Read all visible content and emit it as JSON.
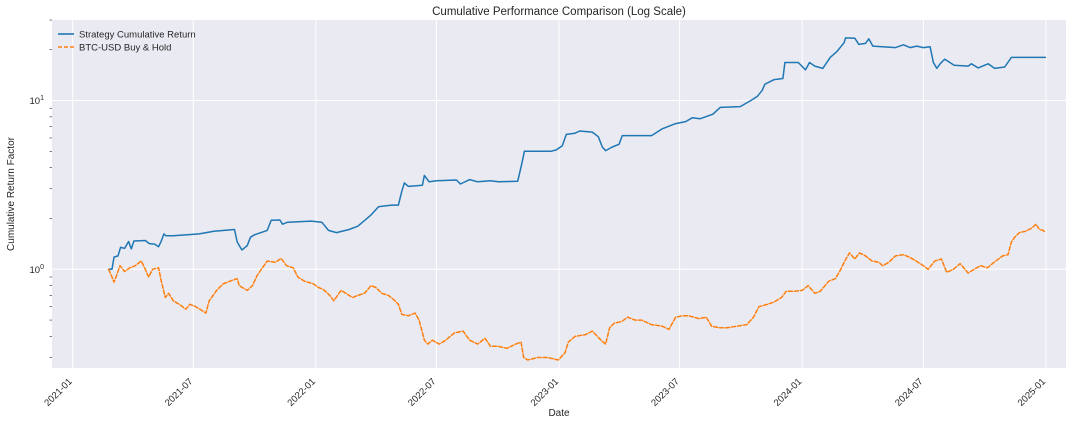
{
  "chart_data": {
    "type": "line",
    "title": "Cumulative Performance Comparison (Log Scale)",
    "xlabel": "Date",
    "ylabel": "Cumulative Return Factor",
    "yscale": "log",
    "ylim": [
      0.26,
      30
    ],
    "xlim": [
      "2020-12-01",
      "2025-01-31"
    ],
    "grid": true,
    "legend_position": "upper-left",
    "x_ticks": [
      "2021-01",
      "2021-07",
      "2022-01",
      "2022-07",
      "2023-01",
      "2023-07",
      "2024-01",
      "2024-07",
      "2025-01"
    ],
    "y_ticks": [
      {
        "value": 1,
        "base": "10",
        "exp": "0"
      },
      {
        "value": 10,
        "base": "10",
        "exp": "1"
      }
    ],
    "series": [
      {
        "name": "Strategy Cumulative Return",
        "color": "#1f77b4",
        "style": "solid",
        "points": [
          [
            "2021-02-24",
            1.0
          ],
          [
            "2021-03-01",
            1.0
          ],
          [
            "2021-03-04",
            1.18
          ],
          [
            "2021-03-10",
            1.2
          ],
          [
            "2021-03-14",
            1.35
          ],
          [
            "2021-03-20",
            1.33
          ],
          [
            "2021-03-26",
            1.46
          ],
          [
            "2021-03-30",
            1.32
          ],
          [
            "2021-04-03",
            1.47
          ],
          [
            "2021-04-20",
            1.48
          ],
          [
            "2021-04-26",
            1.42
          ],
          [
            "2021-05-04",
            1.41
          ],
          [
            "2021-05-10",
            1.36
          ],
          [
            "2021-05-14",
            1.47
          ],
          [
            "2021-05-18",
            1.62
          ],
          [
            "2021-05-21",
            1.58
          ],
          [
            "2021-06-01",
            1.58
          ],
          [
            "2021-07-10",
            1.62
          ],
          [
            "2021-08-01",
            1.68
          ],
          [
            "2021-09-01",
            1.72
          ],
          [
            "2021-09-05",
            1.45
          ],
          [
            "2021-09-12",
            1.3
          ],
          [
            "2021-09-20",
            1.38
          ],
          [
            "2021-09-25",
            1.55
          ],
          [
            "2021-10-01",
            1.6
          ],
          [
            "2021-10-20",
            1.7
          ],
          [
            "2021-10-26",
            1.95
          ],
          [
            "2021-11-08",
            1.96
          ],
          [
            "2021-11-12",
            1.85
          ],
          [
            "2021-11-20",
            1.9
          ],
          [
            "2021-12-25",
            1.93
          ],
          [
            "2022-01-10",
            1.9
          ],
          [
            "2022-01-20",
            1.7
          ],
          [
            "2022-02-01",
            1.65
          ],
          [
            "2022-02-20",
            1.72
          ],
          [
            "2022-03-05",
            1.8
          ],
          [
            "2022-03-25",
            2.1
          ],
          [
            "2022-04-05",
            2.35
          ],
          [
            "2022-04-25",
            2.4
          ],
          [
            "2022-05-05",
            2.4
          ],
          [
            "2022-05-10",
            2.9
          ],
          [
            "2022-05-14",
            3.25
          ],
          [
            "2022-05-20",
            3.1
          ],
          [
            "2022-06-10",
            3.15
          ],
          [
            "2022-06-13",
            3.6
          ],
          [
            "2022-06-20",
            3.3
          ],
          [
            "2022-07-01",
            3.35
          ],
          [
            "2022-07-31",
            3.38
          ],
          [
            "2022-08-06",
            3.2
          ],
          [
            "2022-08-20",
            3.4
          ],
          [
            "2022-09-01",
            3.3
          ],
          [
            "2022-09-20",
            3.35
          ],
          [
            "2022-10-02",
            3.3
          ],
          [
            "2022-10-31",
            3.32
          ],
          [
            "2022-11-06",
            4.2
          ],
          [
            "2022-11-10",
            5.0
          ],
          [
            "2022-12-20",
            5.0
          ],
          [
            "2022-12-28",
            5.1
          ],
          [
            "2023-01-06",
            5.4
          ],
          [
            "2023-01-12",
            6.3
          ],
          [
            "2023-01-25",
            6.4
          ],
          [
            "2023-02-01",
            6.6
          ],
          [
            "2023-02-20",
            6.5
          ],
          [
            "2023-03-01",
            6.1
          ],
          [
            "2023-03-07",
            5.3
          ],
          [
            "2023-03-12",
            5.05
          ],
          [
            "2023-03-22",
            5.3
          ],
          [
            "2023-04-01",
            5.5
          ],
          [
            "2023-04-06",
            6.2
          ],
          [
            "2023-05-20",
            6.2
          ],
          [
            "2023-06-05",
            6.8
          ],
          [
            "2023-06-25",
            7.3
          ],
          [
            "2023-07-10",
            7.5
          ],
          [
            "2023-07-20",
            7.9
          ],
          [
            "2023-08-01",
            7.8
          ],
          [
            "2023-08-20",
            8.3
          ],
          [
            "2023-08-31",
            9.1
          ],
          [
            "2023-09-30",
            9.2
          ],
          [
            "2023-10-16",
            10.0
          ],
          [
            "2023-10-26",
            10.6
          ],
          [
            "2023-11-02",
            11.5
          ],
          [
            "2023-11-06",
            12.5
          ],
          [
            "2023-11-20",
            13.3
          ],
          [
            "2023-12-03",
            13.5
          ],
          [
            "2023-12-06",
            16.8
          ],
          [
            "2023-12-26",
            16.8
          ],
          [
            "2024-01-06",
            15.2
          ],
          [
            "2024-01-12",
            16.8
          ],
          [
            "2024-01-20",
            16.0
          ],
          [
            "2024-02-01",
            15.5
          ],
          [
            "2024-02-12",
            18.0
          ],
          [
            "2024-02-22",
            19.5
          ],
          [
            "2024-03-04",
            22.0
          ],
          [
            "2024-03-06",
            23.5
          ],
          [
            "2024-03-20",
            23.4
          ],
          [
            "2024-03-26",
            21.5
          ],
          [
            "2024-04-05",
            21.8
          ],
          [
            "2024-04-10",
            23.2
          ],
          [
            "2024-04-16",
            21.0
          ],
          [
            "2024-05-20",
            20.6
          ],
          [
            "2024-06-01",
            21.4
          ],
          [
            "2024-06-11",
            20.6
          ],
          [
            "2024-06-21",
            21.0
          ],
          [
            "2024-07-01",
            20.6
          ],
          [
            "2024-07-11",
            20.8
          ],
          [
            "2024-07-16",
            16.8
          ],
          [
            "2024-07-21",
            15.5
          ],
          [
            "2024-07-26",
            16.5
          ],
          [
            "2024-08-02",
            17.6
          ],
          [
            "2024-08-16",
            16.2
          ],
          [
            "2024-09-06",
            16.0
          ],
          [
            "2024-09-11",
            16.5
          ],
          [
            "2024-09-21",
            15.6
          ],
          [
            "2024-10-06",
            16.5
          ],
          [
            "2024-10-16",
            15.5
          ],
          [
            "2024-10-31",
            15.8
          ],
          [
            "2024-11-10",
            18.0
          ],
          [
            "2024-12-01",
            18.0
          ],
          [
            "2024-12-31",
            18.0
          ]
        ]
      },
      {
        "name": "BTC-USD Buy & Hold",
        "color": "#ff7f0e",
        "style": "dashed",
        "points": [
          [
            "2021-02-24",
            1.0
          ],
          [
            "2021-03-01",
            0.9
          ],
          [
            "2021-03-04",
            0.84
          ],
          [
            "2021-03-08",
            0.92
          ],
          [
            "2021-03-13",
            1.05
          ],
          [
            "2021-03-20",
            0.97
          ],
          [
            "2021-03-28",
            1.02
          ],
          [
            "2021-04-05",
            1.05
          ],
          [
            "2021-04-14",
            1.12
          ],
          [
            "2021-04-20",
            1.0
          ],
          [
            "2021-04-25",
            0.9
          ],
          [
            "2021-05-01",
            1.0
          ],
          [
            "2021-05-10",
            1.02
          ],
          [
            "2021-05-14",
            0.85
          ],
          [
            "2021-05-20",
            0.68
          ],
          [
            "2021-05-25",
            0.72
          ],
          [
            "2021-06-01",
            0.65
          ],
          [
            "2021-06-10",
            0.62
          ],
          [
            "2021-06-20",
            0.58
          ],
          [
            "2021-06-26",
            0.62
          ],
          [
            "2021-07-05",
            0.6
          ],
          [
            "2021-07-20",
            0.55
          ],
          [
            "2021-07-25",
            0.65
          ],
          [
            "2021-08-05",
            0.75
          ],
          [
            "2021-08-15",
            0.82
          ],
          [
            "2021-08-25",
            0.85
          ],
          [
            "2021-09-05",
            0.88
          ],
          [
            "2021-09-08",
            0.8
          ],
          [
            "2021-09-20",
            0.75
          ],
          [
            "2021-09-28",
            0.8
          ],
          [
            "2021-10-05",
            0.92
          ],
          [
            "2021-10-15",
            1.05
          ],
          [
            "2021-10-20",
            1.12
          ],
          [
            "2021-11-01",
            1.1
          ],
          [
            "2021-11-10",
            1.16
          ],
          [
            "2021-11-18",
            1.05
          ],
          [
            "2021-11-28",
            1.02
          ],
          [
            "2021-12-05",
            0.9
          ],
          [
            "2021-12-15",
            0.85
          ],
          [
            "2021-12-28",
            0.82
          ],
          [
            "2022-01-05",
            0.78
          ],
          [
            "2022-01-12",
            0.76
          ],
          [
            "2022-01-22",
            0.7
          ],
          [
            "2022-01-28",
            0.65
          ],
          [
            "2022-02-08",
            0.75
          ],
          [
            "2022-02-15",
            0.72
          ],
          [
            "2022-02-25",
            0.68
          ],
          [
            "2022-03-05",
            0.7
          ],
          [
            "2022-03-15",
            0.72
          ],
          [
            "2022-03-25",
            0.8
          ],
          [
            "2022-04-01",
            0.78
          ],
          [
            "2022-04-10",
            0.72
          ],
          [
            "2022-04-20",
            0.7
          ],
          [
            "2022-04-28",
            0.66
          ],
          [
            "2022-05-05",
            0.62
          ],
          [
            "2022-05-10",
            0.54
          ],
          [
            "2022-05-20",
            0.53
          ],
          [
            "2022-05-30",
            0.55
          ],
          [
            "2022-06-05",
            0.5
          ],
          [
            "2022-06-13",
            0.38
          ],
          [
            "2022-06-18",
            0.36
          ],
          [
            "2022-06-25",
            0.38
          ],
          [
            "2022-07-05",
            0.36
          ],
          [
            "2022-07-15",
            0.38
          ],
          [
            "2022-07-28",
            0.42
          ],
          [
            "2022-08-10",
            0.43
          ],
          [
            "2022-08-20",
            0.38
          ],
          [
            "2022-09-01",
            0.36
          ],
          [
            "2022-09-12",
            0.39
          ],
          [
            "2022-09-20",
            0.35
          ],
          [
            "2022-10-01",
            0.35
          ],
          [
            "2022-10-15",
            0.34
          ],
          [
            "2022-10-28",
            0.36
          ],
          [
            "2022-11-05",
            0.37
          ],
          [
            "2022-11-09",
            0.3
          ],
          [
            "2022-11-15",
            0.29
          ],
          [
            "2022-11-30",
            0.3
          ],
          [
            "2022-12-15",
            0.3
          ],
          [
            "2022-12-31",
            0.29
          ],
          [
            "2023-01-10",
            0.32
          ],
          [
            "2023-01-15",
            0.37
          ],
          [
            "2023-01-25",
            0.4
          ],
          [
            "2023-02-10",
            0.41
          ],
          [
            "2023-02-20",
            0.43
          ],
          [
            "2023-03-05",
            0.38
          ],
          [
            "2023-03-12",
            0.36
          ],
          [
            "2023-03-18",
            0.45
          ],
          [
            "2023-03-25",
            0.48
          ],
          [
            "2023-04-05",
            0.49
          ],
          [
            "2023-04-14",
            0.52
          ],
          [
            "2023-04-25",
            0.5
          ],
          [
            "2023-05-05",
            0.5
          ],
          [
            "2023-05-20",
            0.47
          ],
          [
            "2023-06-05",
            0.46
          ],
          [
            "2023-06-15",
            0.44
          ],
          [
            "2023-06-25",
            0.52
          ],
          [
            "2023-07-05",
            0.53
          ],
          [
            "2023-07-15",
            0.53
          ],
          [
            "2023-07-30",
            0.51
          ],
          [
            "2023-08-10",
            0.52
          ],
          [
            "2023-08-18",
            0.46
          ],
          [
            "2023-08-30",
            0.45
          ],
          [
            "2023-09-10",
            0.45
          ],
          [
            "2023-09-25",
            0.46
          ],
          [
            "2023-10-10",
            0.47
          ],
          [
            "2023-10-20",
            0.52
          ],
          [
            "2023-10-28",
            0.6
          ],
          [
            "2023-11-10",
            0.62
          ],
          [
            "2023-11-20",
            0.64
          ],
          [
            "2023-12-01",
            0.68
          ],
          [
            "2023-12-08",
            0.74
          ],
          [
            "2023-12-20",
            0.74
          ],
          [
            "2024-01-01",
            0.75
          ],
          [
            "2024-01-10",
            0.8
          ],
          [
            "2024-01-20",
            0.72
          ],
          [
            "2024-01-28",
            0.74
          ],
          [
            "2024-02-10",
            0.85
          ],
          [
            "2024-02-20",
            0.88
          ],
          [
            "2024-02-28",
            1.0
          ],
          [
            "2024-03-05",
            1.12
          ],
          [
            "2024-03-12",
            1.25
          ],
          [
            "2024-03-20",
            1.15
          ],
          [
            "2024-03-27",
            1.25
          ],
          [
            "2024-04-05",
            1.2
          ],
          [
            "2024-04-15",
            1.12
          ],
          [
            "2024-04-25",
            1.1
          ],
          [
            "2024-05-01",
            1.05
          ],
          [
            "2024-05-10",
            1.1
          ],
          [
            "2024-05-20",
            1.2
          ],
          [
            "2024-06-01",
            1.22
          ],
          [
            "2024-06-10",
            1.18
          ],
          [
            "2024-06-20",
            1.12
          ],
          [
            "2024-07-01",
            1.05
          ],
          [
            "2024-07-08",
            1.0
          ],
          [
            "2024-07-18",
            1.12
          ],
          [
            "2024-07-28",
            1.15
          ],
          [
            "2024-08-05",
            0.96
          ],
          [
            "2024-08-15",
            1.0
          ],
          [
            "2024-08-25",
            1.08
          ],
          [
            "2024-09-06",
            0.95
          ],
          [
            "2024-09-15",
            1.0
          ],
          [
            "2024-09-25",
            1.05
          ],
          [
            "2024-10-05",
            1.02
          ],
          [
            "2024-10-15",
            1.1
          ],
          [
            "2024-10-28",
            1.2
          ],
          [
            "2024-11-05",
            1.22
          ],
          [
            "2024-11-10",
            1.45
          ],
          [
            "2024-11-15",
            1.55
          ],
          [
            "2024-11-22",
            1.65
          ],
          [
            "2024-12-01",
            1.68
          ],
          [
            "2024-12-10",
            1.75
          ],
          [
            "2024-12-17",
            1.85
          ],
          [
            "2024-12-22",
            1.72
          ],
          [
            "2024-12-28",
            1.7
          ],
          [
            "2024-12-31",
            1.65
          ]
        ]
      }
    ]
  }
}
